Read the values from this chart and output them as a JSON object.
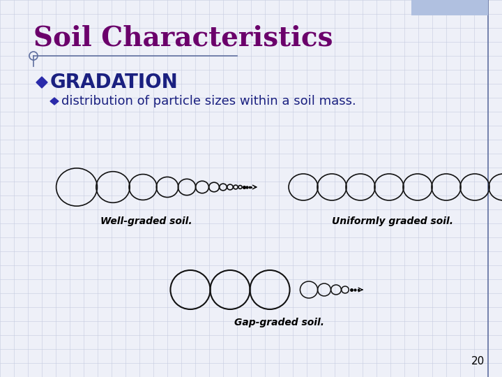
{
  "title": "Soil Characteristics",
  "title_color": "#6B006B",
  "title_fontsize": 28,
  "heading": "GRADATION",
  "heading_color": "#1a2080",
  "heading_fontsize": 20,
  "bullet_color": "#2a2aaa",
  "sub_text": "distribution of particle sizes within a soil mass.",
  "sub_text_color": "#1a2080",
  "sub_fontsize": 13,
  "label_well": "Well-graded soil.",
  "label_uniform": "Uniformly graded soil.",
  "label_gap": "Gap-graded soil.",
  "label_fontsize": 10,
  "page_number": "20",
  "bg_color": "#eef0f8",
  "grid_color": "#c5cce0",
  "line_color": "#6070a0"
}
